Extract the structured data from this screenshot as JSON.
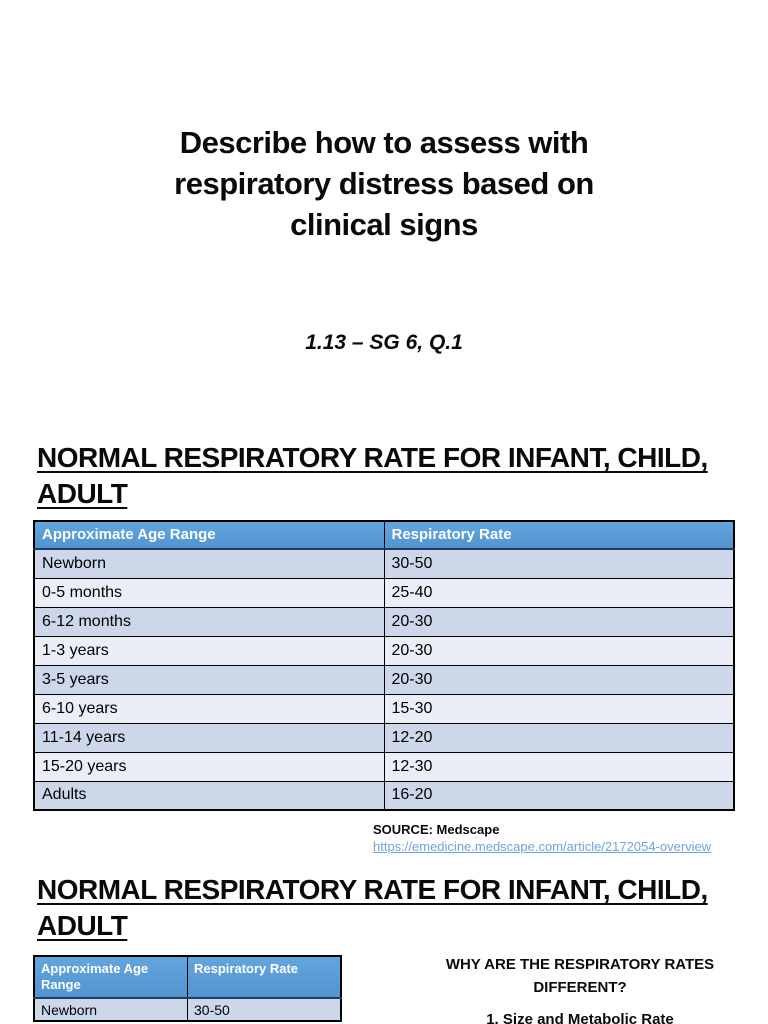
{
  "title": {
    "lines": [
      "Describe how to assess with",
      "respiratory distress based on",
      "clinical signs"
    ]
  },
  "subtitle": "1.13 – SG 6, Q.1",
  "section1": {
    "heading": "NORMAL RESPIRATORY RATE FOR INFANT, CHILD, ADULT",
    "table": {
      "headers": [
        "Approximate Age Range",
        "Respiratory Rate"
      ],
      "rows": [
        [
          "Newborn",
          "30-50"
        ],
        [
          "0-5 months",
          "25-40"
        ],
        [
          "6-12 months",
          "20-30"
        ],
        [
          "1-3 years",
          "20-30"
        ],
        [
          "3-5 years",
          "20-30"
        ],
        [
          "6-10 years",
          "15-30"
        ],
        [
          "11-14 years",
          "12-20"
        ],
        [
          "15-20 years",
          "12-30"
        ],
        [
          "Adults",
          "16-20"
        ]
      ]
    },
    "source_label": "SOURCE: Medscape",
    "source_link": "https://emedicine.medscape.com/article/2172054-overview"
  },
  "section2": {
    "heading": "NORMAL RESPIRATORY RATE FOR INFANT, CHILD, ADULT",
    "table": {
      "headers": [
        "Approximate Age Range",
        "Respiratory Rate"
      ],
      "rows": [
        [
          "Newborn",
          "30-50"
        ]
      ]
    },
    "question_lines": [
      "WHY ARE THE RESPIRATORY RATES",
      "DIFFERENT?"
    ],
    "cutoff_item": "1. Size and Metabolic Rate"
  },
  "colors": {
    "table_header_bg": "#5b9bd5",
    "row_band_dark": "#ccd8ea",
    "row_band_light": "#eaeef6",
    "link": "#6ea4da"
  }
}
